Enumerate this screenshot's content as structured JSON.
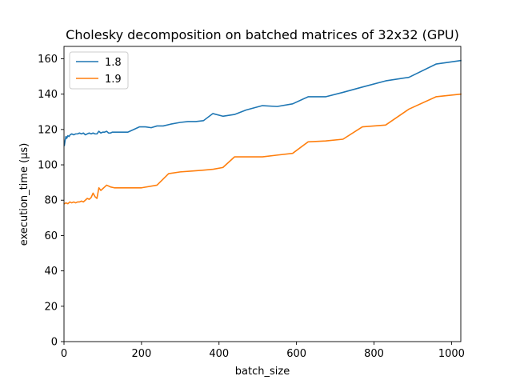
{
  "chart_data": {
    "type": "line",
    "title": "Cholesky decomposition on batched matrices of 32x32 (GPU)",
    "xlabel": "batch_size",
    "ylabel": "execution_time (µs)",
    "xlim": [
      0,
      1024
    ],
    "ylim": [
      0,
      167
    ],
    "xticks": [
      0,
      200,
      400,
      600,
      800,
      1000
    ],
    "yticks": [
      0,
      20,
      40,
      60,
      80,
      100,
      120,
      140,
      160
    ],
    "grid": false,
    "legend_position": "upper-left",
    "series": [
      {
        "name": "1.8",
        "color": "#1f77b4",
        "x": [
          1,
          3,
          5,
          7,
          10,
          13,
          16,
          20,
          25,
          30,
          35,
          40,
          45,
          50,
          55,
          60,
          65,
          70,
          75,
          80,
          85,
          90,
          95,
          100,
          105,
          110,
          115,
          120,
          125,
          130,
          140,
          150,
          165,
          180,
          195,
          210,
          225,
          240,
          256,
          275,
          300,
          320,
          340,
          360,
          384,
          410,
          440,
          470,
          512,
          550,
          590,
          630,
          675,
          720,
          770,
          830,
          890,
          960,
          1024
        ],
        "y": [
          111,
          114,
          116,
          115,
          116.5,
          116,
          117,
          117.5,
          117,
          117.5,
          117.5,
          118,
          117.5,
          118,
          117,
          117.5,
          118,
          117.5,
          118,
          117.5,
          117.5,
          119,
          118,
          118.5,
          118.5,
          119,
          118,
          118,
          118.5,
          118.5,
          118.5,
          118.5,
          118.5,
          120,
          121.5,
          121.5,
          121,
          122,
          122,
          123,
          124,
          124.5,
          124.5,
          125,
          129,
          127.5,
          128.5,
          131,
          133.5,
          133,
          134.5,
          138.5,
          138.5,
          141,
          144,
          147.5,
          149.5,
          157,
          159
        ]
      },
      {
        "name": "1.9",
        "color": "#ff7f0e",
        "x": [
          1,
          5,
          10,
          15,
          20,
          25,
          30,
          35,
          40,
          45,
          50,
          55,
          60,
          65,
          70,
          75,
          80,
          85,
          90,
          95,
          100,
          105,
          110,
          120,
          130,
          140,
          150,
          160,
          175,
          200,
          240,
          270,
          300,
          330,
          360,
          385,
          410,
          440,
          470,
          512,
          550,
          590,
          630,
          675,
          720,
          770,
          830,
          890,
          960,
          1024
        ],
        "y": [
          78,
          78.5,
          78,
          79,
          78.5,
          79,
          78.5,
          79,
          79,
          79.5,
          79,
          80,
          81,
          80.5,
          81.5,
          84,
          82,
          81,
          87,
          85.5,
          86.5,
          87.5,
          88.5,
          87.5,
          87,
          87,
          87,
          87,
          87,
          87,
          88.5,
          95,
          96,
          96.5,
          97,
          97.5,
          98.5,
          104.5,
          104.5,
          104.5,
          105.5,
          106.5,
          113,
          113.5,
          114.5,
          121.5,
          122.5,
          131.5,
          138.5,
          140
        ]
      }
    ]
  }
}
